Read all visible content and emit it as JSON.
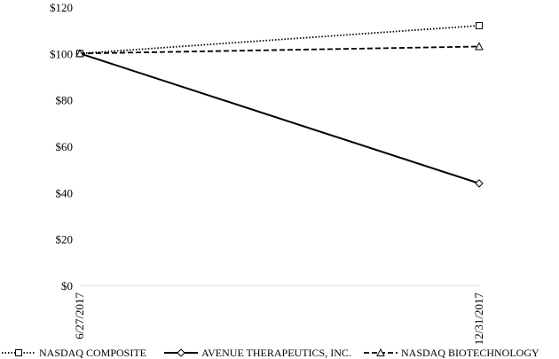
{
  "chart_data": {
    "type": "line",
    "title": "",
    "xlabel": "",
    "ylabel": "",
    "categories": [
      "6/27/2017",
      "12/31/2017"
    ],
    "ylim": [
      0,
      120
    ],
    "yticks": [
      0,
      20,
      40,
      60,
      80,
      100,
      120
    ],
    "ytick_labels": [
      "$0",
      "$20",
      "$40",
      "$60",
      "$80",
      "$100",
      "$120"
    ],
    "grid": false,
    "legend_position": "bottom",
    "series": [
      {
        "name": "NASDAQ COMPOSITE",
        "values": [
          100,
          112
        ],
        "line_style": "dotted",
        "marker": "square",
        "color": "#000000"
      },
      {
        "name": "AVENUE THERAPEUTICS, INC.",
        "values": [
          100,
          44
        ],
        "line_style": "solid",
        "marker": "diamond",
        "color": "#000000"
      },
      {
        "name": "NASDAQ BIOTECHNOLOGY",
        "values": [
          100,
          103
        ],
        "line_style": "dashed",
        "marker": "triangle",
        "color": "#000000"
      }
    ]
  }
}
